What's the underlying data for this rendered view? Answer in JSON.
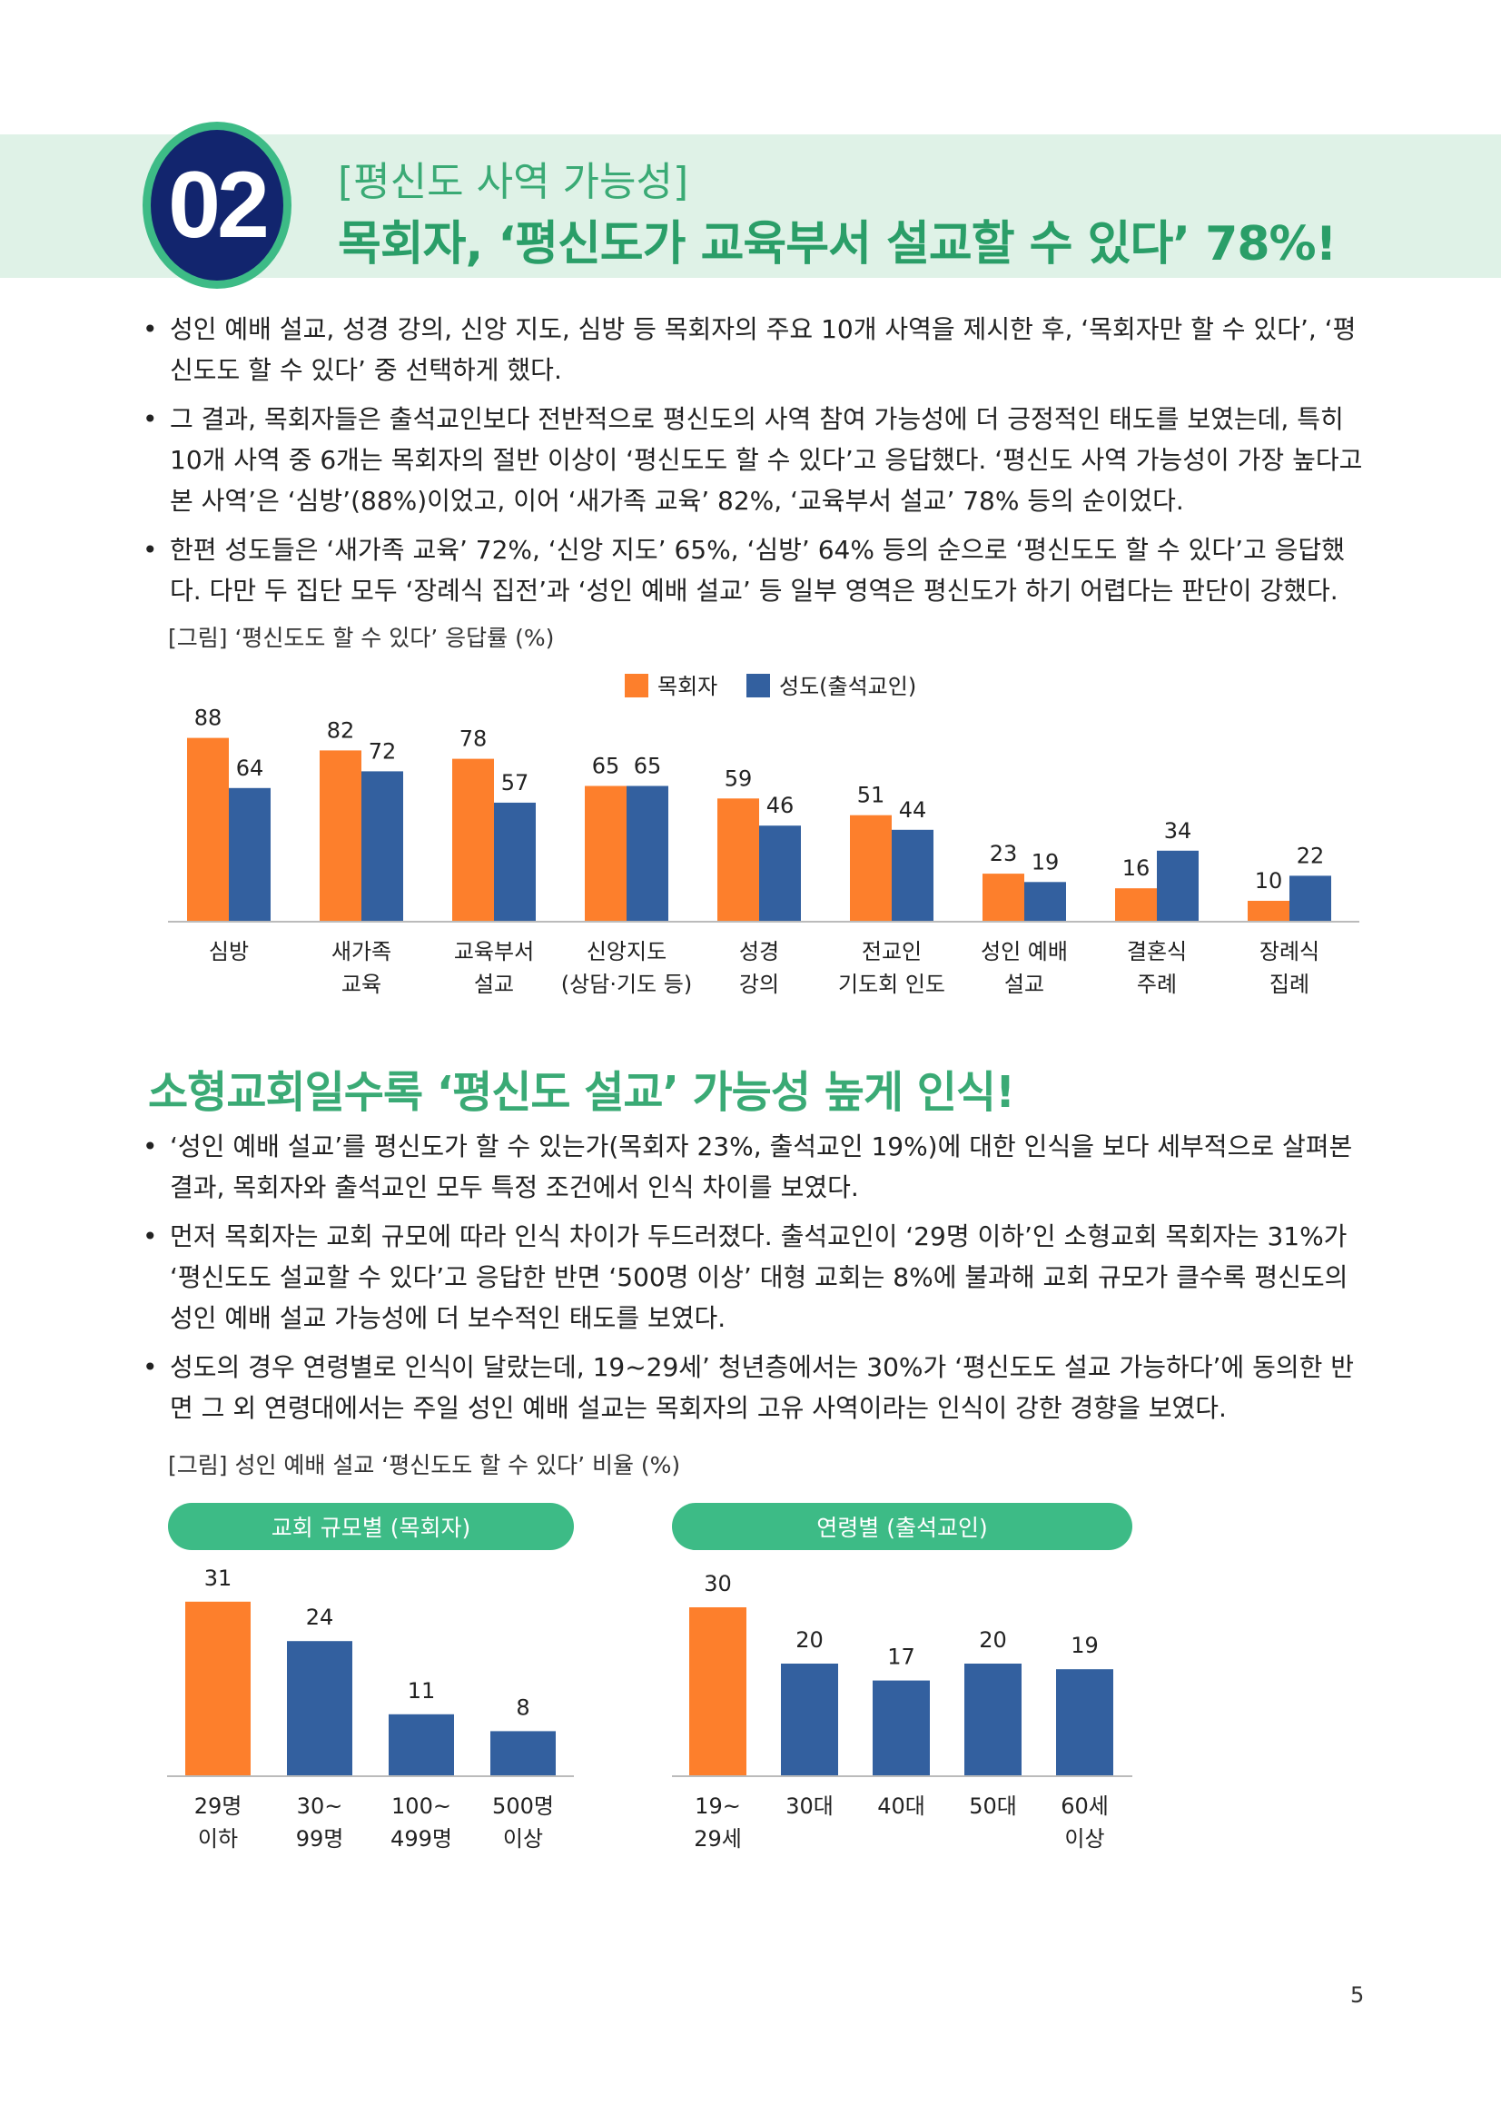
{
  "header": {
    "number": "02",
    "subtitle": "[평신도 사역 가능성]",
    "title": "목회자, ‘평신도가 교육부서 설교할 수 있다’ 78%!"
  },
  "section1": {
    "bullets": [
      "성인 예배 설교, 성경 강의, 신앙 지도, 심방 등 목회자의 주요 10개 사역을 제시한 후, ‘목회자만 할 수 있다’, ‘평신도도 할 수 있다’ 중 선택하게 했다.",
      "그 결과, 목회자들은 출석교인보다 전반적으로 평신도의 사역 참여 가능성에 더 긍정적인 태도를 보였는데, 특히 10개 사역 중 6개는 목회자의 절반 이상이 ‘평신도도 할 수 있다’고 응답했다. ‘평신도 사역 가능성이 가장 높다고 본 사역’은 ‘심방’(88%)이었고, 이어 ‘새가족 교육’ 82%, ‘교육부서 설교’ 78% 등의 순이었다.",
      "한편 성도들은 ‘새가족 교육’ 72%, ‘신앙 지도’ 65%, ‘심방’ 64% 등의 순으로 ‘평신도도 할 수 있다’고 응답했다. 다만 두 집단 모두 ‘장례식 집전’과 ‘성인 예배 설교’ 등 일부 영역은 평신도가 하기 어렵다는 판단이 강했다."
    ],
    "figure_caption": "[그림] ‘평신도도 할 수 있다’ 응답률 (%)"
  },
  "section2": {
    "title": "소형교회일수록 ‘평신도 설교’ 가능성 높게 인식!",
    "bullets": [
      "‘성인 예배 설교’를 평신도가 할 수 있는가(목회자 23%, 출석교인 19%)에 대한 인식을 보다 세부적으로 살펴본 결과, 목회자와 출석교인 모두 특정 조건에서 인식 차이를 보였다.",
      "먼저 목회자는 교회 규모에 따라 인식 차이가 두드러졌다. 출석교인이 ‘29명 이하’인 소형교회 목회자는 31%가 ‘평신도도 설교할 수 있다’고 응답한 반면 ‘500명 이상’ 대형 교회는 8%에 불과해 교회 규모가 클수록 평신도의 성인 예배 설교 가능성에 더 보수적인 태도를 보였다.",
      "성도의 경우 연령별로 인식이 달랐는데, 19~29세’ 청년층에서는 30%가 ‘평신도도 설교 가능하다’에 동의한 반면 그 외 연령대에서는 주일 성인 예배 설교는 목회자의 고유 사역이라는 인식이 강한 경향을 보였다."
    ],
    "figure_caption": "[그림] 성인 예배 설교 ‘평신도도 할 수 있다’ 비율 (%)"
  },
  "colors": {
    "orange": "#fd7f2c",
    "blue": "#33609f",
    "green": "#3dbb86",
    "navy": "#12256e"
  },
  "chart_data": [
    {
      "type": "bar",
      "title": "",
      "categories": [
        [
          "심방"
        ],
        [
          "새가족",
          "교육"
        ],
        [
          "교육부서",
          "설교"
        ],
        [
          "신앙지도",
          "(상담·기도 등)"
        ],
        [
          "성경",
          "강의"
        ],
        [
          "전교인",
          "기도회 인도"
        ],
        [
          "성인 예배",
          "설교"
        ],
        [
          "결혼식",
          "주례"
        ],
        [
          "장례식",
          "집례"
        ]
      ],
      "series": [
        {
          "name": "목회자",
          "color": "#fd7f2c",
          "values": [
            88,
            82,
            78,
            65,
            59,
            51,
            23,
            16,
            10
          ]
        },
        {
          "name": "성도(출석교인)",
          "color": "#33609f",
          "values": [
            64,
            72,
            57,
            65,
            46,
            44,
            19,
            34,
            22
          ]
        }
      ],
      "ylim": [
        0,
        100
      ],
      "legend": "top-center",
      "grid": false
    },
    {
      "type": "bar",
      "title": "교회 규모별 (목회자)",
      "categories": [
        [
          "29명",
          "이하"
        ],
        [
          "30~",
          "99명"
        ],
        [
          "100~",
          "499명"
        ],
        [
          "500명",
          "이상"
        ]
      ],
      "values": [
        31,
        24,
        11,
        8
      ],
      "colors": [
        "#fd7f2c",
        "#33609f",
        "#33609f",
        "#33609f"
      ],
      "ylim": [
        0,
        35
      ]
    },
    {
      "type": "bar",
      "title": "연령별 (출석교인)",
      "categories": [
        [
          "19~",
          "29세"
        ],
        [
          "30대"
        ],
        [
          "40대"
        ],
        [
          "50대"
        ],
        [
          "60세",
          "이상"
        ]
      ],
      "values": [
        30,
        20,
        17,
        20,
        19
      ],
      "colors": [
        "#fd7f2c",
        "#33609f",
        "#33609f",
        "#33609f",
        "#33609f"
      ],
      "ylim": [
        0,
        35
      ]
    }
  ],
  "page_number": "5"
}
